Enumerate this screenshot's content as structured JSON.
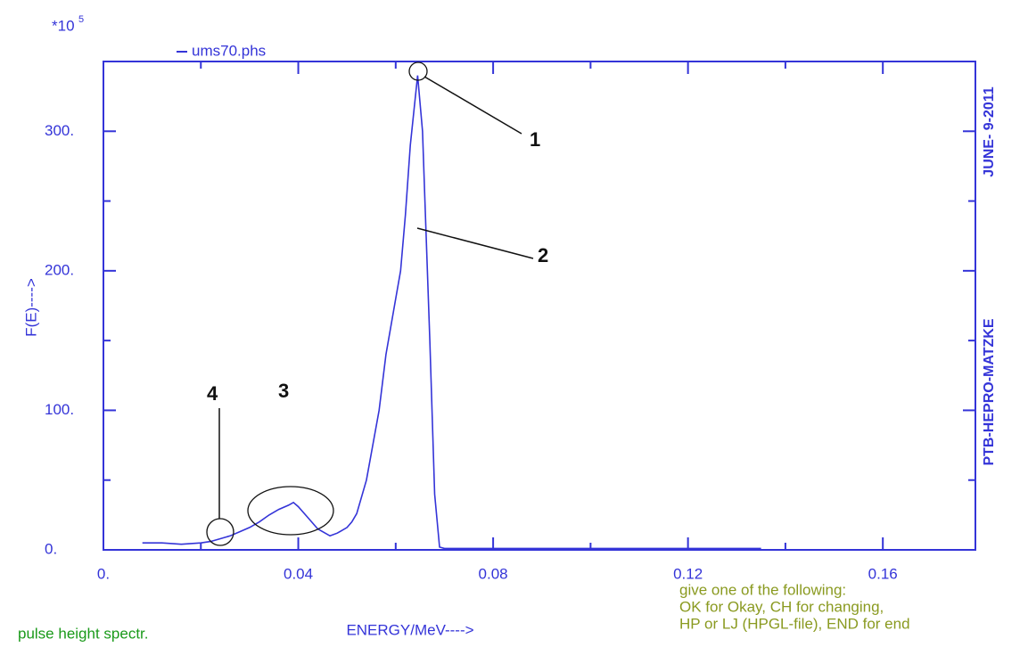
{
  "chart_data": {
    "type": "line",
    "y_multiplier": {
      "base": "*10",
      "exponent": "5"
    },
    "ylabel": "F(E)---->",
    "xlabel": "ENERGY/MeV---->",
    "side_labels": [
      "PTB-HEPRO-MATZKE",
      "JUNE- 9-2011"
    ],
    "footer_left": "pulse height spectr.",
    "prompt": [
      "give one of the following:",
      "OK for Okay, CH for changing,",
      "HP or LJ (HPGL-file), END for end"
    ],
    "annotations": [
      "1",
      "2",
      "3",
      "4"
    ],
    "xlim": [
      0,
      0.179
    ],
    "ylim": [
      0,
      350
    ],
    "xticks": [
      {
        "value": 0,
        "label": "0."
      },
      0.04,
      0.08,
      0.12,
      0.16
    ],
    "yticks": [
      {
        "value": 0,
        "label": "0."
      },
      {
        "value": 100,
        "label": "100."
      },
      {
        "value": 200,
        "label": "200."
      },
      {
        "value": 300,
        "label": "300."
      }
    ],
    "minor_xticks": [
      0.02,
      0.06,
      0.1,
      0.14
    ],
    "minor_yticks": [
      50,
      150,
      250
    ],
    "series": [
      {
        "name": "ums70.phs",
        "color": "#3434d8",
        "x": [
          0.008,
          0.012,
          0.016,
          0.02,
          0.022,
          0.024,
          0.026,
          0.028,
          0.03,
          0.032,
          0.034,
          0.036,
          0.038,
          0.039,
          0.04,
          0.042,
          0.044,
          0.0465,
          0.048,
          0.05,
          0.051,
          0.052,
          0.054,
          0.0566,
          0.058,
          0.06,
          0.061,
          0.062,
          0.063,
          0.0645,
          0.0655,
          0.066,
          0.067,
          0.068,
          0.069,
          0.07,
          0.08,
          0.1,
          0.12,
          0.135
        ],
        "y": [
          5,
          5,
          4,
          5,
          6,
          8,
          10,
          13,
          16,
          20,
          25,
          29,
          32,
          34,
          31,
          23,
          15,
          10,
          12,
          16,
          20,
          26,
          50,
          100,
          140,
          180,
          200,
          240,
          290,
          340,
          300,
          250,
          150,
          40,
          2,
          1,
          1,
          1,
          1,
          1
        ]
      }
    ]
  }
}
